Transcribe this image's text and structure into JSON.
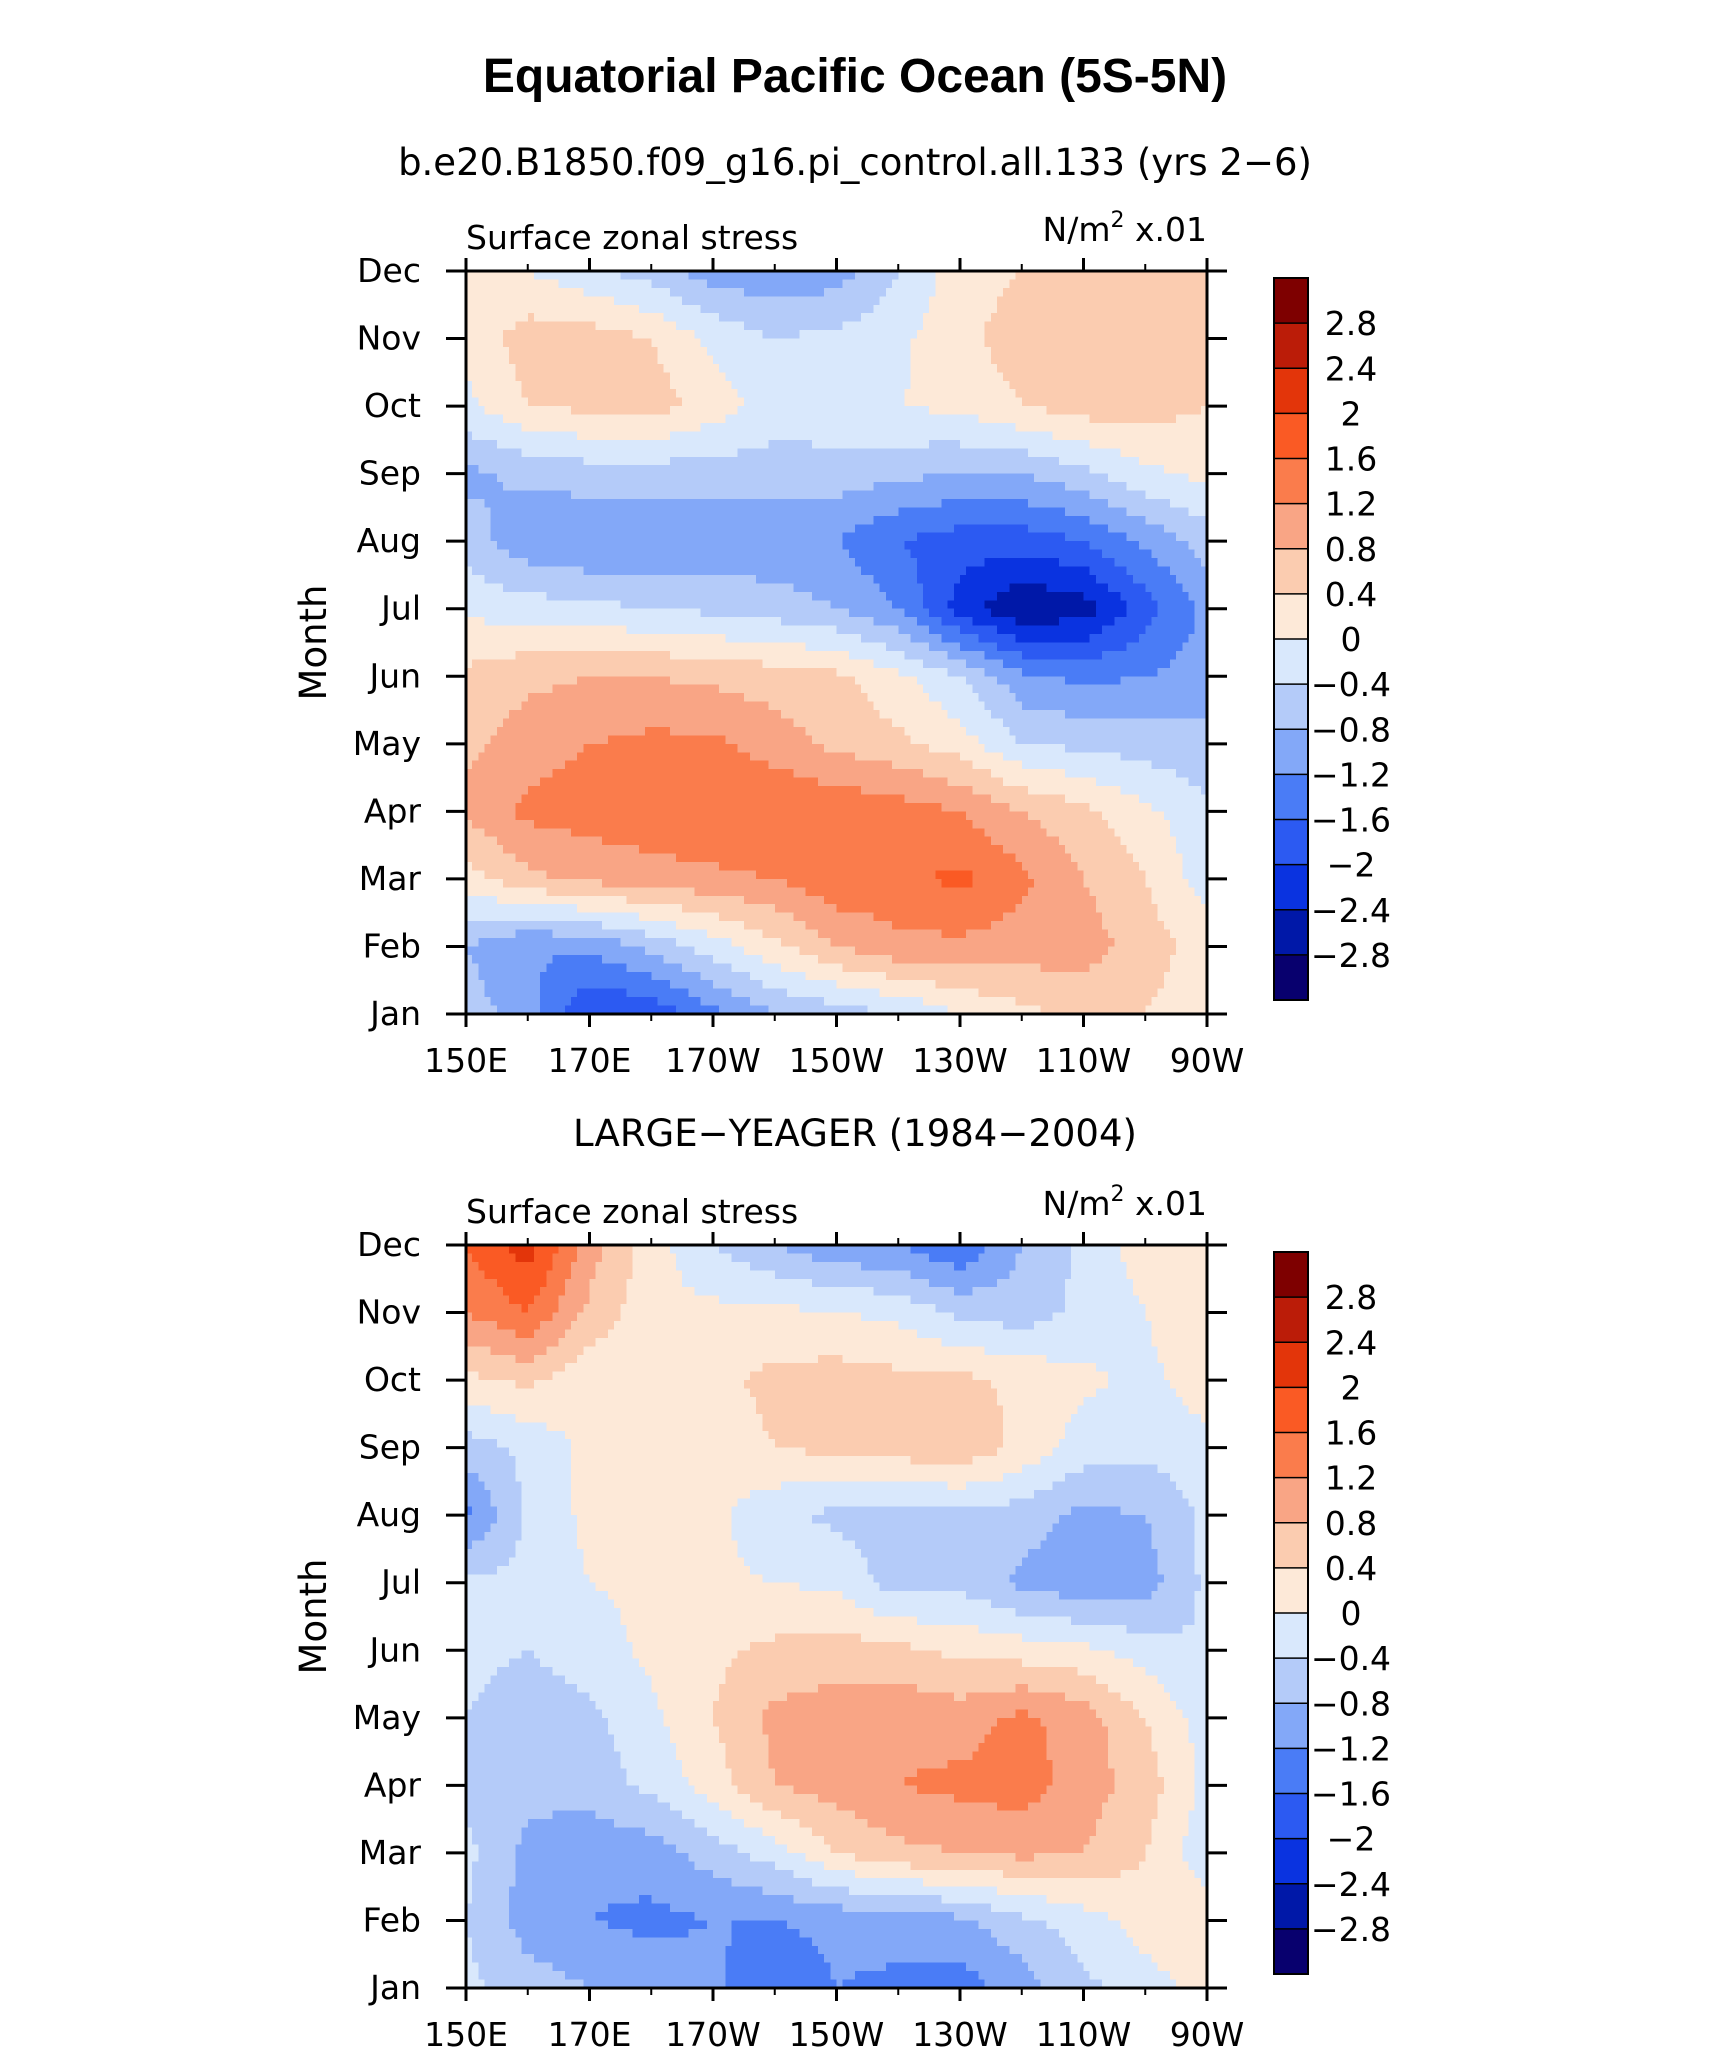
{
  "title": "Equatorial Pacific Ocean (5S-5N)",
  "chart_data": [
    {
      "type": "heatmap",
      "subtitle": "b.e20.B1850.f09_g16.pi_control.all.133 (yrs 2−6)",
      "left_label": "Surface zonal stress",
      "units_label": "N/m",
      "units_sup": "2",
      "units_scale": " x.01",
      "ylabel": "Month",
      "x_ticks": [
        "150E",
        "170E",
        "170W",
        "150W",
        "130W",
        "110W",
        "90W"
      ],
      "x_longitudes": [
        150,
        170,
        190,
        210,
        230,
        250,
        270
      ],
      "xlim": [
        150,
        270
      ],
      "y_ticks": [
        "Jan",
        "Feb",
        "Mar",
        "Apr",
        "May",
        "Jun",
        "Jul",
        "Aug",
        "Sep",
        "Oct",
        "Nov",
        "Dec"
      ],
      "levels": [
        -2.8,
        -2.4,
        -2,
        -1.6,
        -1.2,
        -0.8,
        -0.4,
        0,
        0.4,
        0.8,
        1.2,
        1.6,
        2,
        2.4,
        2.8
      ],
      "level_labels": [
        "2.8",
        "2.4",
        "2",
        "1.6",
        "1.2",
        "0.8",
        "0.4",
        "0",
        "−0.4",
        "−0.8",
        "−1.2",
        "−1.6",
        "−2",
        "−2.4",
        "−2.8"
      ],
      "grid_lon": [
        150,
        160,
        170,
        180,
        190,
        200,
        210,
        220,
        230,
        240,
        250,
        260,
        270
      ],
      "values": [
        [
          -0.6,
          -1.0,
          -2.0,
          -1.9,
          -1.3,
          -0.8,
          -0.6,
          -0.4,
          0.0,
          0.3,
          0.5,
          0.4,
          0.1
        ],
        [
          -0.8,
          -1.2,
          -1.1,
          -0.7,
          -0.2,
          0.3,
          0.8,
          1.1,
          1.1,
          1.0,
          1.0,
          0.6,
          0.2
        ],
        [
          0.2,
          0.7,
          0.9,
          1.0,
          1.1,
          1.2,
          1.5,
          1.5,
          1.7,
          1.3,
          0.8,
          0.4,
          -0.2
        ],
        [
          0.9,
          1.3,
          1.4,
          1.5,
          1.6,
          1.6,
          1.5,
          1.4,
          1.2,
          0.8,
          0.5,
          0.1,
          -0.3
        ],
        [
          0.7,
          1.0,
          1.2,
          1.3,
          1.3,
          1.0,
          0.7,
          0.5,
          0.2,
          -0.4,
          -0.5,
          -0.6,
          -0.7
        ],
        [
          0.5,
          0.7,
          0.8,
          0.8,
          0.7,
          0.6,
          0.5,
          0.1,
          -0.4,
          -1.1,
          -1.3,
          -1.2,
          -1.0
        ],
        [
          -0.1,
          -0.2,
          -0.3,
          -0.4,
          -0.5,
          -0.6,
          -0.8,
          -1.2,
          -2.2,
          -2.8,
          -2.6,
          -1.8,
          -1.1
        ],
        [
          -0.6,
          -1.1,
          -1.2,
          -1.2,
          -1.1,
          -1.1,
          -1.2,
          -1.6,
          -1.8,
          -1.8,
          -1.6,
          -1.1,
          -0.6
        ],
        [
          -0.9,
          -0.7,
          -0.6,
          -0.6,
          -0.6,
          -0.6,
          -0.6,
          -0.7,
          -0.8,
          -0.8,
          -0.5,
          -0.1,
          0.1
        ],
        [
          -0.1,
          0.4,
          0.5,
          0.6,
          0.2,
          -0.2,
          -0.1,
          0.0,
          0.1,
          0.4,
          0.6,
          0.6,
          0.4
        ],
        [
          0.1,
          0.6,
          0.6,
          0.4,
          -0.1,
          -0.4,
          -0.3,
          -0.1,
          0.3,
          0.6,
          0.8,
          0.7,
          0.5
        ],
        [
          0.1,
          0.0,
          -0.3,
          -0.6,
          -1.0,
          -1.1,
          -1.0,
          -0.4,
          0.2,
          0.4,
          0.5,
          0.5,
          0.4
        ]
      ]
    },
    {
      "type": "heatmap",
      "subtitle": "LARGE−YEAGER (1984−2004)",
      "left_label": "Surface zonal stress",
      "units_label": "N/m",
      "units_sup": "2",
      "units_scale": " x.01",
      "ylabel": "Month",
      "x_ticks": [
        "150E",
        "170E",
        "170W",
        "150W",
        "130W",
        "110W",
        "90W"
      ],
      "x_longitudes": [
        150,
        170,
        190,
        210,
        230,
        250,
        270
      ],
      "xlim": [
        150,
        270
      ],
      "y_ticks": [
        "Jan",
        "Feb",
        "Mar",
        "Apr",
        "May",
        "Jun",
        "Jul",
        "Aug",
        "Sep",
        "Oct",
        "Nov",
        "Dec"
      ],
      "levels": [
        -2.8,
        -2.4,
        -2,
        -1.6,
        -1.2,
        -0.8,
        -0.4,
        0,
        0.4,
        0.8,
        1.2,
        1.6,
        2,
        2.4,
        2.8
      ],
      "level_labels": [
        "2.8",
        "2.4",
        "2",
        "1.6",
        "1.2",
        "0.8",
        "0.4",
        "0",
        "−0.4",
        "−0.8",
        "−1.2",
        "−1.6",
        "−2",
        "−2.4",
        "−2.8"
      ],
      "grid_lon": [
        150,
        160,
        170,
        180,
        190,
        200,
        210,
        220,
        230,
        240,
        250,
        260,
        270
      ],
      "values": [
        [
          -0.3,
          -0.6,
          -0.8,
          -0.9,
          -1.1,
          -1.5,
          -1.2,
          -1.3,
          -1.4,
          -1.0,
          -0.5,
          -0.2,
          0.2
        ],
        [
          -0.4,
          -1.0,
          -1.2,
          -1.3,
          -1.2,
          -1.2,
          -1.1,
          -1.0,
          -0.9,
          -0.5,
          -0.2,
          0.2,
          0.3
        ],
        [
          -0.3,
          -0.9,
          -1.1,
          -1.0,
          -0.6,
          -0.2,
          0.4,
          0.7,
          0.8,
          0.9,
          0.8,
          0.4,
          -0.3
        ],
        [
          -0.5,
          -0.7,
          -0.6,
          -0.3,
          0.2,
          0.8,
          1.0,
          1.2,
          1.3,
          1.4,
          1.0,
          0.6,
          -0.1
        ],
        [
          -0.4,
          -0.6,
          -0.5,
          -0.1,
          0.4,
          0.9,
          1.0,
          1.1,
          1.0,
          1.3,
          1.0,
          0.4,
          -0.2
        ],
        [
          -0.3,
          -0.4,
          -0.2,
          0.1,
          0.3,
          0.5,
          0.6,
          0.5,
          0.3,
          0.2,
          0.1,
          -0.2,
          -0.4
        ],
        [
          -0.3,
          -0.3,
          0.0,
          0.1,
          0.1,
          0.0,
          -0.1,
          -0.6,
          -0.5,
          -0.9,
          -1.1,
          -1.0,
          -0.3
        ],
        [
          -1.3,
          -0.3,
          0.1,
          0.2,
          0.1,
          -0.3,
          -0.5,
          -0.6,
          -0.5,
          -0.6,
          -0.9,
          -0.8,
          -0.3
        ],
        [
          -0.6,
          -0.3,
          0.1,
          0.3,
          0.2,
          0.4,
          0.5,
          0.6,
          0.7,
          0.3,
          -0.2,
          -0.3,
          -0.1
        ],
        [
          0.3,
          0.5,
          0.1,
          0.2,
          0.3,
          0.5,
          0.6,
          0.5,
          0.5,
          0.3,
          0.1,
          -0.1,
          0.2
        ],
        [
          1.2,
          1.6,
          0.7,
          0.1,
          0.1,
          0.1,
          0.0,
          -0.1,
          -0.5,
          -0.6,
          -0.3,
          0.0,
          0.3
        ],
        [
          1.6,
          2.2,
          1.0,
          0.2,
          -0.4,
          -0.8,
          -1.1,
          -1.2,
          -1.6,
          -0.8,
          -0.3,
          0.2,
          0.3
        ]
      ]
    }
  ]
}
